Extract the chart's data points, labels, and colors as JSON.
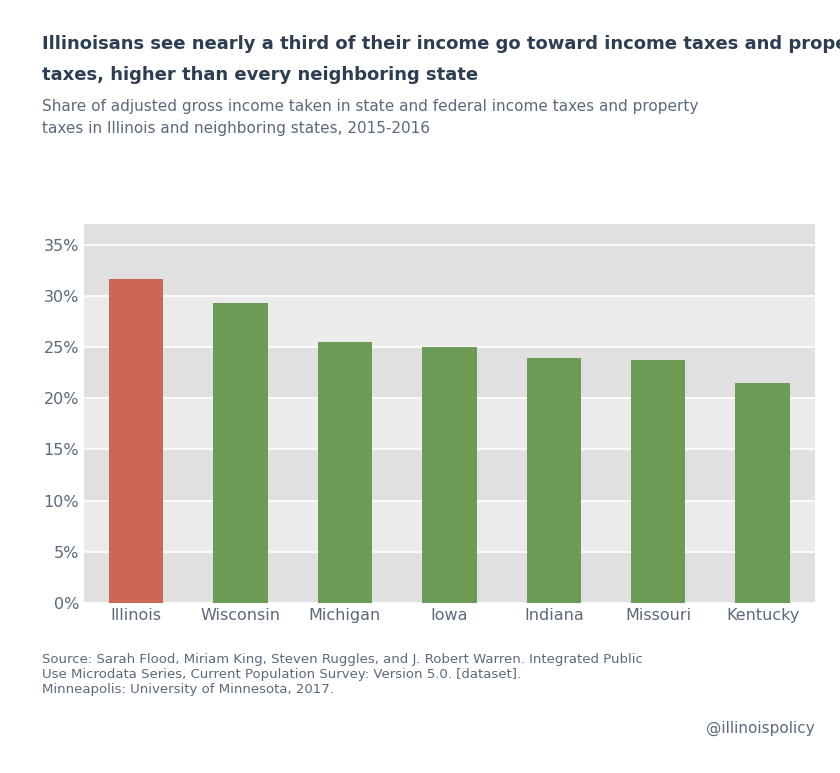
{
  "categories": [
    "Illinois",
    "Wisconsin",
    "Michigan",
    "Iowa",
    "Indiana",
    "Missouri",
    "Kentucky"
  ],
  "values": [
    0.316,
    0.293,
    0.255,
    0.25,
    0.239,
    0.237,
    0.215
  ],
  "bar_colors": [
    "#cc6655",
    "#6b9b55",
    "#6b9b55",
    "#6b9b55",
    "#6b9b55",
    "#6b9b55",
    "#6b9b55"
  ],
  "title_line1": "Illinoisans see nearly a third of their income go toward income taxes and property",
  "title_line2": "taxes, higher than every neighboring state",
  "subtitle_line1": "Share of adjusted gross income taken in state and federal income taxes and property",
  "subtitle_line2": "taxes in Illinois and neighboring states, 2015-2016",
  "source": "Source: Sarah Flood, Miriam King, Steven Ruggles, and J. Robert Warren. Integrated Public\nUse Microdata Series, Current Population Survey: Version 5.0. [dataset].\nMinneapolis: University of Minnesota, 2017.",
  "watermark": "@illinoispolicy",
  "fig_bg": "#ffffff",
  "plot_bg_light": "#ebebeb",
  "plot_bg_dark": "#e0e0e0",
  "title_color": "#2d3d52",
  "subtitle_color": "#5a6a7a",
  "tick_color": "#5a6a7a",
  "label_color": "#5a6a7a",
  "source_color": "#5a6a7a",
  "ylim": [
    0,
    0.37
  ],
  "yticks": [
    0.0,
    0.05,
    0.1,
    0.15,
    0.2,
    0.25,
    0.3,
    0.35
  ]
}
